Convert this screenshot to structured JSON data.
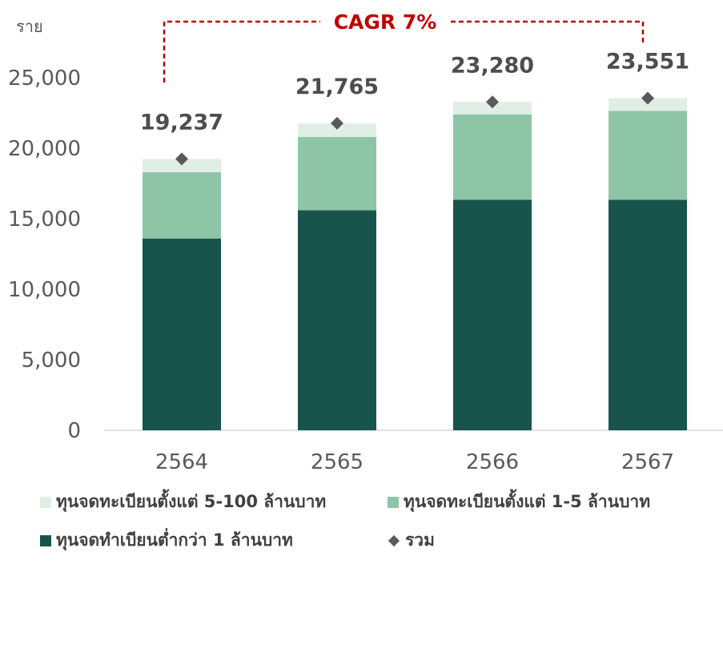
{
  "chart_data": {
    "type": "bar",
    "stacked": true,
    "categories": [
      "2564",
      "2565",
      "2566",
      "2567"
    ],
    "series": [
      {
        "name": "ทุนจดทำเบียนต่ำกว่า 1 ล้านบาท",
        "color": "#17544b",
        "values": [
          13600,
          15600,
          16350,
          16350
        ]
      },
      {
        "name": "ทุนจดทะเบียนตั้งแต่ 1-5 ล้านบาท",
        "color": "#8ec5a7",
        "values": [
          4700,
          5200,
          6050,
          6300
        ]
      },
      {
        "name": "ทุนจดทะเบียนตั้งแต่ 5-100 ล้านบาท",
        "color": "#e1eee5",
        "values": [
          937,
          965,
          880,
          901
        ]
      }
    ],
    "totals": {
      "name": "รวม",
      "color": "#595959",
      "values": [
        19237,
        21765,
        23280,
        23551
      ],
      "labels": [
        "19,237",
        "21,765",
        "23,280",
        "23,551"
      ]
    },
    "ylabel": "ราย",
    "ylim": [
      0,
      25000
    ],
    "yticks": [
      0,
      5000,
      10000,
      15000,
      20000,
      25000
    ],
    "ytick_labels": [
      "0",
      "5,000",
      "10,000",
      "15,000",
      "20,000",
      "25,000"
    ],
    "annotation": {
      "text": "CAGR 7%",
      "color": "#c00000"
    },
    "legend_position": "bottom",
    "grid": false
  },
  "legend": {
    "items": [
      {
        "label": "ทุนจดทะเบียนตั้งแต่ 5-100 ล้านบาท",
        "color": "#e1eee5",
        "marker": "square"
      },
      {
        "label": "ทุนจดทะเบียนตั้งแต่ 1-5 ล้านบาท",
        "color": "#8ec5a7",
        "marker": "square"
      },
      {
        "label": "ทุนจดทำเบียนต่ำกว่า 1 ล้านบาท",
        "color": "#17544b",
        "marker": "square"
      },
      {
        "label": "รวม",
        "color": "#595959",
        "marker": "diamond"
      }
    ]
  }
}
